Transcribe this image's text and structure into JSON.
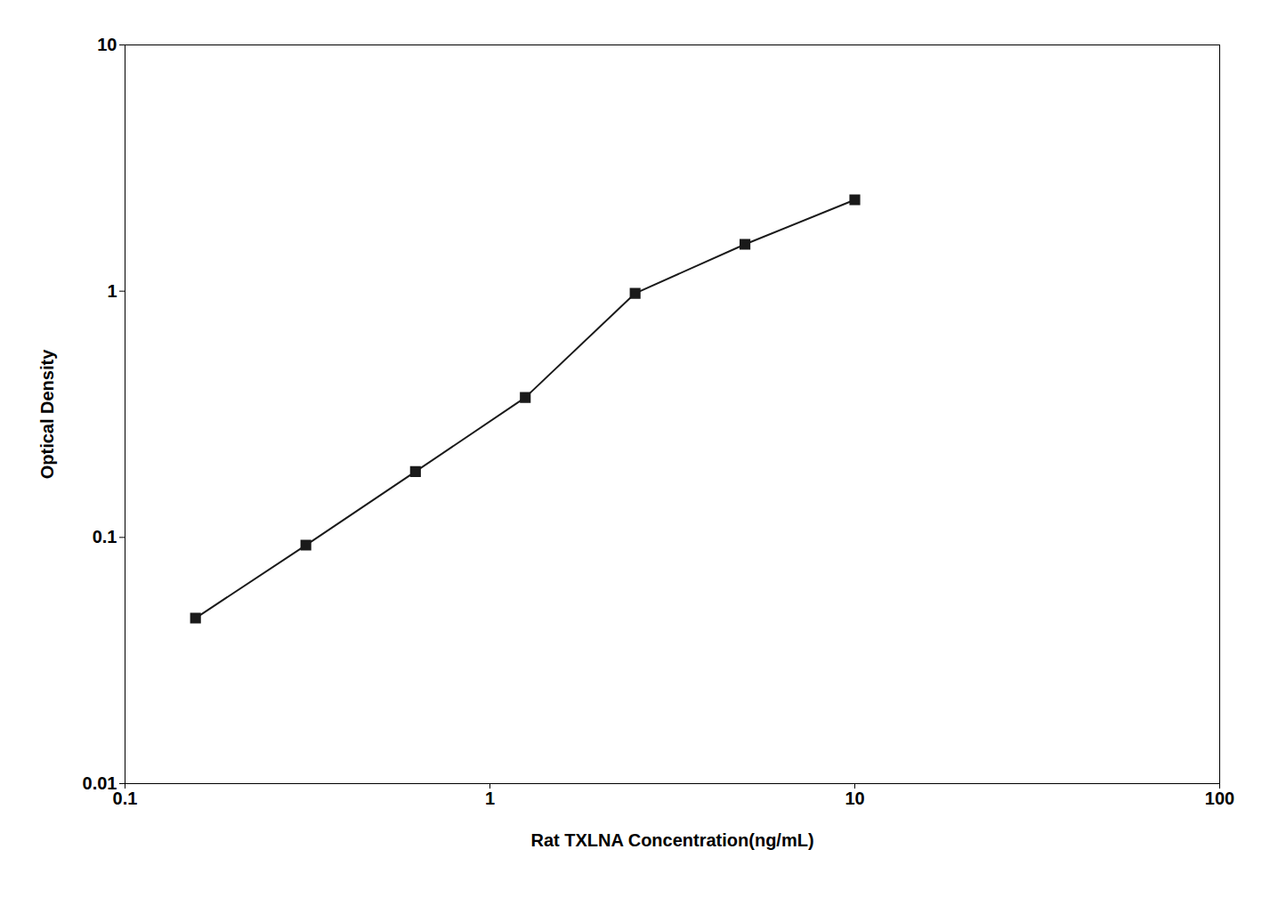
{
  "chart_data": {
    "type": "line",
    "x": [
      0.156,
      0.313,
      0.625,
      1.25,
      2.5,
      5.0,
      10.0
    ],
    "values": [
      0.047,
      0.093,
      0.185,
      0.37,
      0.98,
      1.55,
      2.35
    ],
    "xlabel": "Rat TXLNA Concentration(ng/mL)",
    "ylabel": "Optical Density",
    "xlim": [
      0.1,
      100
    ],
    "ylim": [
      0.01,
      10
    ],
    "xticks": [
      0.1,
      1,
      10,
      100
    ],
    "yticks": [
      0.01,
      0.1,
      1,
      10
    ],
    "log": true,
    "grid": false,
    "color": "#1a1a1a",
    "marker": "square"
  }
}
